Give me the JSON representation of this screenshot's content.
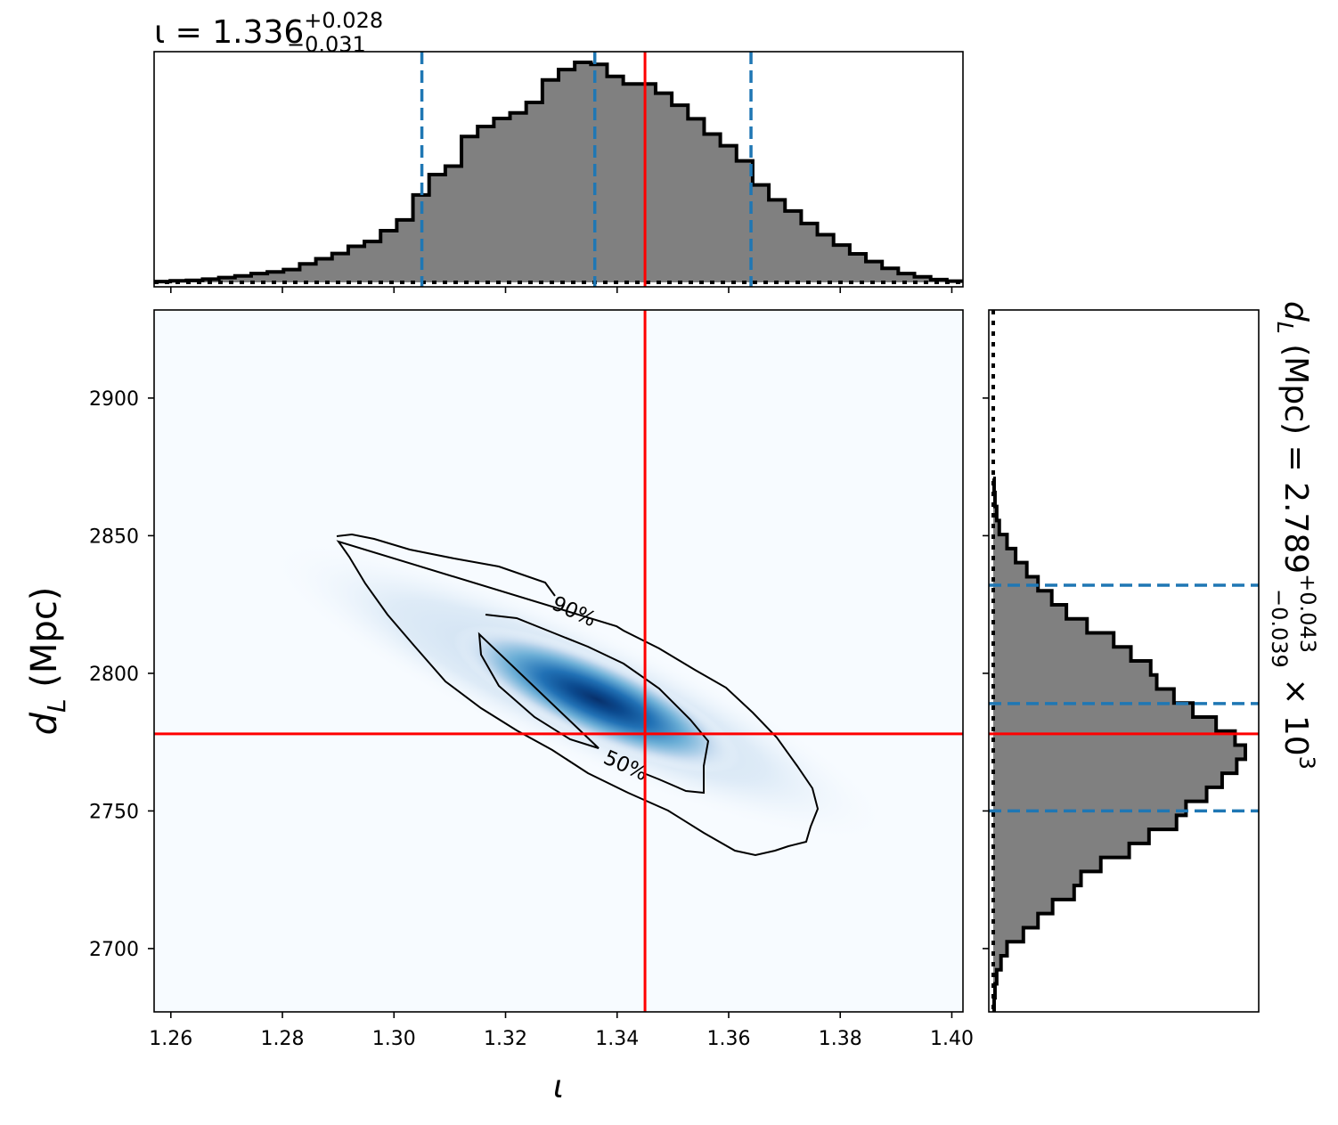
{
  "chart_data": {
    "type": "scatter",
    "kind": "corner_plot_2d",
    "parameters": [
      {
        "symbol": "ι",
        "median": 1.336,
        "upper": "+0.028",
        "lower": "−0.031",
        "injected": 1.345
      },
      {
        "symbol": "d_L",
        "unit": "(Mpc)",
        "median": 2789,
        "upper": "+0.043",
        "lower": "−0.039",
        "multiplier": "× 10",
        "exponent": "3",
        "injected": 2778
      }
    ],
    "title_iota": {
      "base": "ι = 1.336",
      "sup": "+0.028",
      "sub": "−0.031"
    },
    "title_dl": {
      "base": "d",
      "base_sub": "L",
      "mid": " (Mpc) = 2.789",
      "sup": "+0.043",
      "sub": "−0.039",
      "tail": " × 10",
      "exp": "3"
    },
    "xlabel": "ι",
    "ylabel": {
      "main": "d",
      "sub": "L",
      "unit": " (Mpc)"
    },
    "xlim": [
      1.257,
      1.402
    ],
    "ylim": [
      2677,
      2932
    ],
    "x_ticks": [
      1.26,
      1.28,
      1.3,
      1.32,
      1.34,
      1.36,
      1.38,
      1.4
    ],
    "x_tick_labels": [
      "1.26",
      "1.28",
      "1.30",
      "1.32",
      "1.34",
      "1.36",
      "1.38",
      "1.40"
    ],
    "y_ticks": [
      2700,
      2750,
      2800,
      2850,
      2900
    ],
    "y_tick_labels": [
      "2700",
      "2750",
      "2800",
      "2850",
      "2900"
    ],
    "contour_levels": [
      "90%",
      "50%"
    ],
    "quantiles_iota": [
      1.305,
      1.336,
      1.364
    ],
    "quantiles_dl": [
      2750,
      2789,
      2832
    ],
    "hist_iota": {
      "edges_start": 1.257,
      "bin_width": 0.0029,
      "counts": [
        0.2,
        0.4,
        0.5,
        0.8,
        1.2,
        1.6,
        2.2,
        2.6,
        3.2,
        4.6,
        5.9,
        7.2,
        9.0,
        10.2,
        12.9,
        15.6,
        21.8,
        26.9,
        29.0,
        36.4,
        38.9,
        40.9,
        42.3,
        44.9,
        50.5,
        53.1,
        54.9,
        54.4,
        51.4,
        49.5,
        49.5,
        47.2,
        44.2,
        40.8,
        37.0,
        34.1,
        30.3,
        24.3,
        20.6,
        17.8,
        14.7,
        11.9,
        9.3,
        7.1,
        5.2,
        3.5,
        2.2,
        1.4,
        0.7,
        0.3
      ]
    },
    "hist_dl": {
      "edges_start": 2677,
      "bin_width": 5.1,
      "counts": [
        0.1,
        0.2,
        0.4,
        0.9,
        1.6,
        3.5,
        5.2,
        6.9,
        9.4,
        10.2,
        12.5,
        15.8,
        18.1,
        21.3,
        22.4,
        24.8,
        26.6,
        28.3,
        29.3,
        28.1,
        25.9,
        23.2,
        21.0,
        19.0,
        18.3,
        16.0,
        14.0,
        10.9,
        8.5,
        6.8,
        5.2,
        3.9,
        2.6,
        1.6,
        0.7,
        0.4,
        0.2,
        0.1
      ]
    },
    "colors": {
      "hist_fill": "#808080",
      "quantile": "#1f77b4",
      "truth": "#ff0000",
      "cmap_low": "#f7fbff",
      "cmap_high": "#08306b"
    },
    "grid": false
  }
}
